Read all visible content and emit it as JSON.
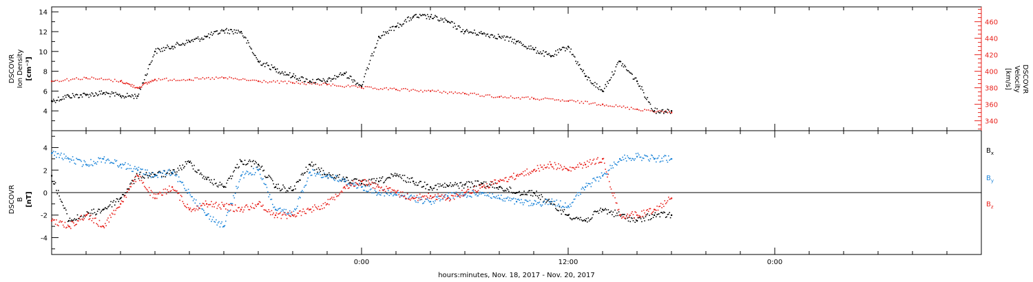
{
  "colors": {
    "black": "#000000",
    "red": "#e8211b",
    "blue": "#1f86d9"
  },
  "xaxis": {
    "label": "hours:minutes, Nov. 18, 2017 - Nov. 20, 2017",
    "range_hours": [
      -18,
      36
    ],
    "major_ticks": [
      {
        "h": 0,
        "label": "0:00"
      },
      {
        "h": 12,
        "label": "12:00"
      },
      {
        "h": 24,
        "label": "0:00"
      }
    ],
    "minor_tick_step_hours": 2
  },
  "top_panel": {
    "left_label": [
      "DSCOVR",
      "Ion Density",
      "[cm⁻³]"
    ],
    "right_label": [
      "DSCOVR",
      "Velocity",
      "[km/s]"
    ]
  },
  "bottom_panel": {
    "left_label": [
      "DSCOVR",
      "B",
      "[nT]"
    ],
    "legend": [
      {
        "text": "B",
        "sub": "x",
        "color": "#000000"
      },
      {
        "text": "B",
        "sub": "y",
        "color": "#1f86d9"
      },
      {
        "text": "B",
        "sub": "z",
        "color": "#e8211b"
      }
    ]
  },
  "chart_data": [
    {
      "type": "scatter",
      "axes": {
        "x": "hours",
        "y_left": "Ion Density [cm^-3]",
        "y_right": "Velocity [km/s]"
      },
      "xlim": [
        -18,
        36
      ],
      "ylim_left": [
        2.0,
        14.5
      ],
      "yticks_left": [
        4,
        6,
        8,
        10,
        12,
        14
      ],
      "ylim_right": [
        328,
        478
      ],
      "yticks_right": [
        340,
        360,
        380,
        400,
        420,
        440,
        460
      ],
      "series": [
        {
          "name": "Ion Density",
          "axis": "left",
          "color": "#000000",
          "x": [
            -18,
            -17,
            -16,
            -15,
            -14,
            -13,
            -12,
            -11,
            -10,
            -9,
            -8,
            -7,
            -6,
            -5,
            -4,
            -3,
            -2,
            -1,
            0,
            1,
            2,
            3,
            4,
            5,
            6,
            7,
            8,
            9,
            10,
            11,
            12,
            13,
            14,
            15,
            16,
            17,
            18
          ],
          "y": [
            5.0,
            5.5,
            5.6,
            5.8,
            5.5,
            5.5,
            10.0,
            10.5,
            11.0,
            11.5,
            12.1,
            12.0,
            9.0,
            8.2,
            7.5,
            7.0,
            7.0,
            7.8,
            6.5,
            11.5,
            12.5,
            13.5,
            13.5,
            13.0,
            12.0,
            11.8,
            11.5,
            11.0,
            10.2,
            9.5,
            10.5,
            7.5,
            6.0,
            9.0,
            7.0,
            4.0,
            4.0
          ]
        },
        {
          "name": "Velocity",
          "axis": "right",
          "color": "#e8211b",
          "x": [
            -18,
            -16,
            -14,
            -13,
            -12,
            -10,
            -8,
            -6,
            -4,
            -2,
            0,
            2,
            4,
            6,
            8,
            10,
            12,
            14,
            16,
            18
          ],
          "y": [
            388,
            392,
            388,
            380,
            390,
            390,
            392,
            388,
            386,
            384,
            380,
            378,
            376,
            373,
            369,
            367,
            364,
            360,
            354,
            350
          ]
        }
      ]
    },
    {
      "type": "scatter",
      "axes": {
        "x": "hours",
        "y": "B [nT]"
      },
      "xlim": [
        -18,
        36
      ],
      "ylim": [
        -5.5,
        5.5
      ],
      "yticks": [
        -4,
        -2,
        0,
        2,
        4
      ],
      "series": [
        {
          "name": "Bx",
          "color": "#000000",
          "x": [
            -18,
            -17,
            -16,
            -15,
            -14,
            -13,
            -12,
            -11,
            -10,
            -9,
            -8,
            -7,
            -6,
            -5,
            -4,
            -3,
            -2,
            -1,
            0,
            1,
            2,
            3,
            4,
            5,
            6,
            7,
            8,
            9,
            10,
            11,
            12,
            13,
            14,
            15,
            16,
            17,
            18
          ],
          "y": [
            1.5,
            -2.5,
            -2.0,
            -1.5,
            -0.5,
            1.5,
            1.6,
            1.7,
            2.7,
            1.2,
            0.5,
            2.8,
            2.5,
            0.5,
            0.2,
            2.5,
            1.6,
            1.2,
            0.8,
            1.0,
            1.5,
            1.0,
            0.5,
            0.6,
            0.7,
            0.8,
            0.5,
            0.0,
            0.0,
            -1.0,
            -2.0,
            -2.5,
            -1.5,
            -2.0,
            -2.5,
            -2.0,
            -2.0
          ]
        },
        {
          "name": "By",
          "color": "#1f86d9",
          "x": [
            -18,
            -17,
            -16,
            -15,
            -14,
            -13,
            -12,
            -11,
            -10,
            -9,
            -8,
            -7,
            -6,
            -5,
            -4,
            -3,
            -2,
            -1,
            0,
            1,
            2,
            3,
            4,
            5,
            6,
            7,
            8,
            9,
            10,
            11,
            12,
            13,
            14,
            15,
            16,
            17,
            18
          ],
          "y": [
            3.5,
            3.0,
            2.5,
            3.0,
            2.5,
            2.0,
            1.5,
            1.8,
            0.0,
            -2.0,
            -3.0,
            1.5,
            2.0,
            -1.5,
            -2.0,
            1.8,
            1.5,
            1.0,
            0.5,
            0.0,
            -0.2,
            -0.5,
            -0.8,
            -0.3,
            -0.2,
            0.0,
            -0.5,
            -0.8,
            -1.0,
            -0.8,
            -1.2,
            0.5,
            1.5,
            3.0,
            3.2,
            3.0,
            3.0
          ]
        },
        {
          "name": "Bz",
          "color": "#e8211b",
          "x": [
            -18,
            -17,
            -16,
            -15,
            -14,
            -13,
            -12,
            -11,
            -10,
            -9,
            -8,
            -7,
            -6,
            -5,
            -4,
            -3,
            -2,
            -1,
            0,
            1,
            2,
            3,
            4,
            5,
            6,
            7,
            8,
            9,
            10,
            11,
            12,
            13,
            14,
            15,
            16,
            17,
            18
          ],
          "y": [
            -2.5,
            -3.0,
            -2.0,
            -3.0,
            -1.0,
            1.5,
            -0.5,
            0.5,
            -1.5,
            -1.0,
            -1.2,
            -1.5,
            -1.0,
            -2.0,
            -2.0,
            -1.5,
            -1.0,
            0.5,
            1.0,
            0.5,
            0.0,
            -0.5,
            -0.3,
            -0.5,
            0.0,
            0.5,
            1.0,
            1.5,
            2.0,
            2.5,
            2.0,
            2.5,
            3.0,
            -2.0,
            -2.0,
            -1.5,
            -0.5
          ]
        }
      ]
    }
  ]
}
